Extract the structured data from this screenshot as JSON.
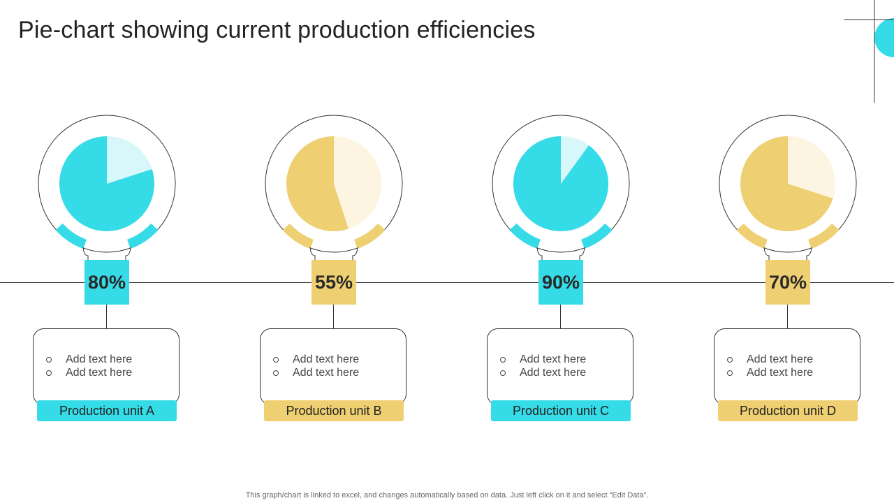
{
  "page": {
    "title": "Pie-chart showing current production efficiencies",
    "footnote": "This graph/chart is linked to excel, and changes automatically based on data. Just left click on it and select “Edit Data”."
  },
  "colors": {
    "cyan": "#35dbe6",
    "cyan_light": "#d7f7fa",
    "yellow": "#eecf71",
    "yellow_light": "#fdf5e2",
    "outline": "#333333"
  },
  "chart_data": {
    "type": "pie",
    "charts": [
      {
        "label": "Production unit A",
        "value_label": "80%",
        "value": 80,
        "theme": "cyan",
        "bullets": [
          "Add text here",
          "Add text here"
        ]
      },
      {
        "label": "Production unit B",
        "value_label": "55%",
        "value": 55,
        "theme": "yellow",
        "bullets": [
          "Add text here",
          "Add text here"
        ]
      },
      {
        "label": "Production unit C",
        "value_label": "90%",
        "value": 90,
        "theme": "cyan",
        "bullets": [
          "Add text here",
          "Add text here"
        ]
      },
      {
        "label": "Production unit D",
        "value_label": "70%",
        "value": 70,
        "theme": "yellow",
        "bullets": [
          "Add text here",
          "Add text here"
        ]
      }
    ]
  }
}
